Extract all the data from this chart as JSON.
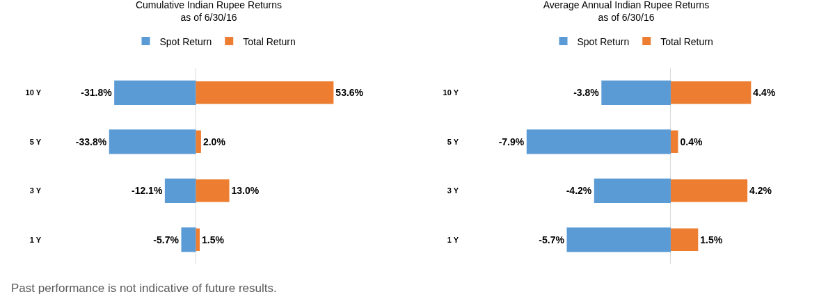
{
  "chart_data": [
    {
      "type": "bar",
      "orientation": "horizontal",
      "title": "Cumulative Indian Rupee Returns\nas of 6/30/16",
      "categories": [
        "10 Y",
        "5 Y",
        "3 Y",
        "1 Y"
      ],
      "legend": "top",
      "grid": false,
      "series": [
        {
          "name": "Spot Return",
          "color": "#5b9bd5",
          "values": [
            -31.8,
            -33.8,
            -12.1,
            -5.7
          ],
          "value_labels": [
            "-31.8%",
            "-33.8%",
            "-12.1%",
            "-5.7%"
          ]
        },
        {
          "name": "Total Return",
          "color": "#ed7d31",
          "values": [
            53.6,
            2.0,
            13.0,
            1.5
          ],
          "value_labels": [
            "53.6%",
            "2.0%",
            "13.0%",
            "1.5%"
          ]
        }
      ],
      "annotations": [
        "Past performance is not indicative of future results."
      ]
    },
    {
      "type": "bar",
      "orientation": "horizontal",
      "title": "Average Annual Indian Rupee Returns\nas of 6/30/16",
      "categories": [
        "10 Y",
        "5 Y",
        "3 Y",
        "1 Y"
      ],
      "legend": "top",
      "grid": false,
      "series": [
        {
          "name": "Spot Return",
          "color": "#5b9bd5",
          "values": [
            -3.8,
            -7.9,
            -4.2,
            -5.7
          ],
          "value_labels": [
            "-3.8%",
            "-7.9%",
            "-4.2%",
            "-5.7%"
          ]
        },
        {
          "name": "Total Return",
          "color": "#ed7d31",
          "values": [
            4.4,
            0.4,
            4.2,
            1.5
          ],
          "value_labels": [
            "4.4%",
            "0.4%",
            "4.2%",
            "1.5%"
          ]
        }
      ]
    }
  ]
}
